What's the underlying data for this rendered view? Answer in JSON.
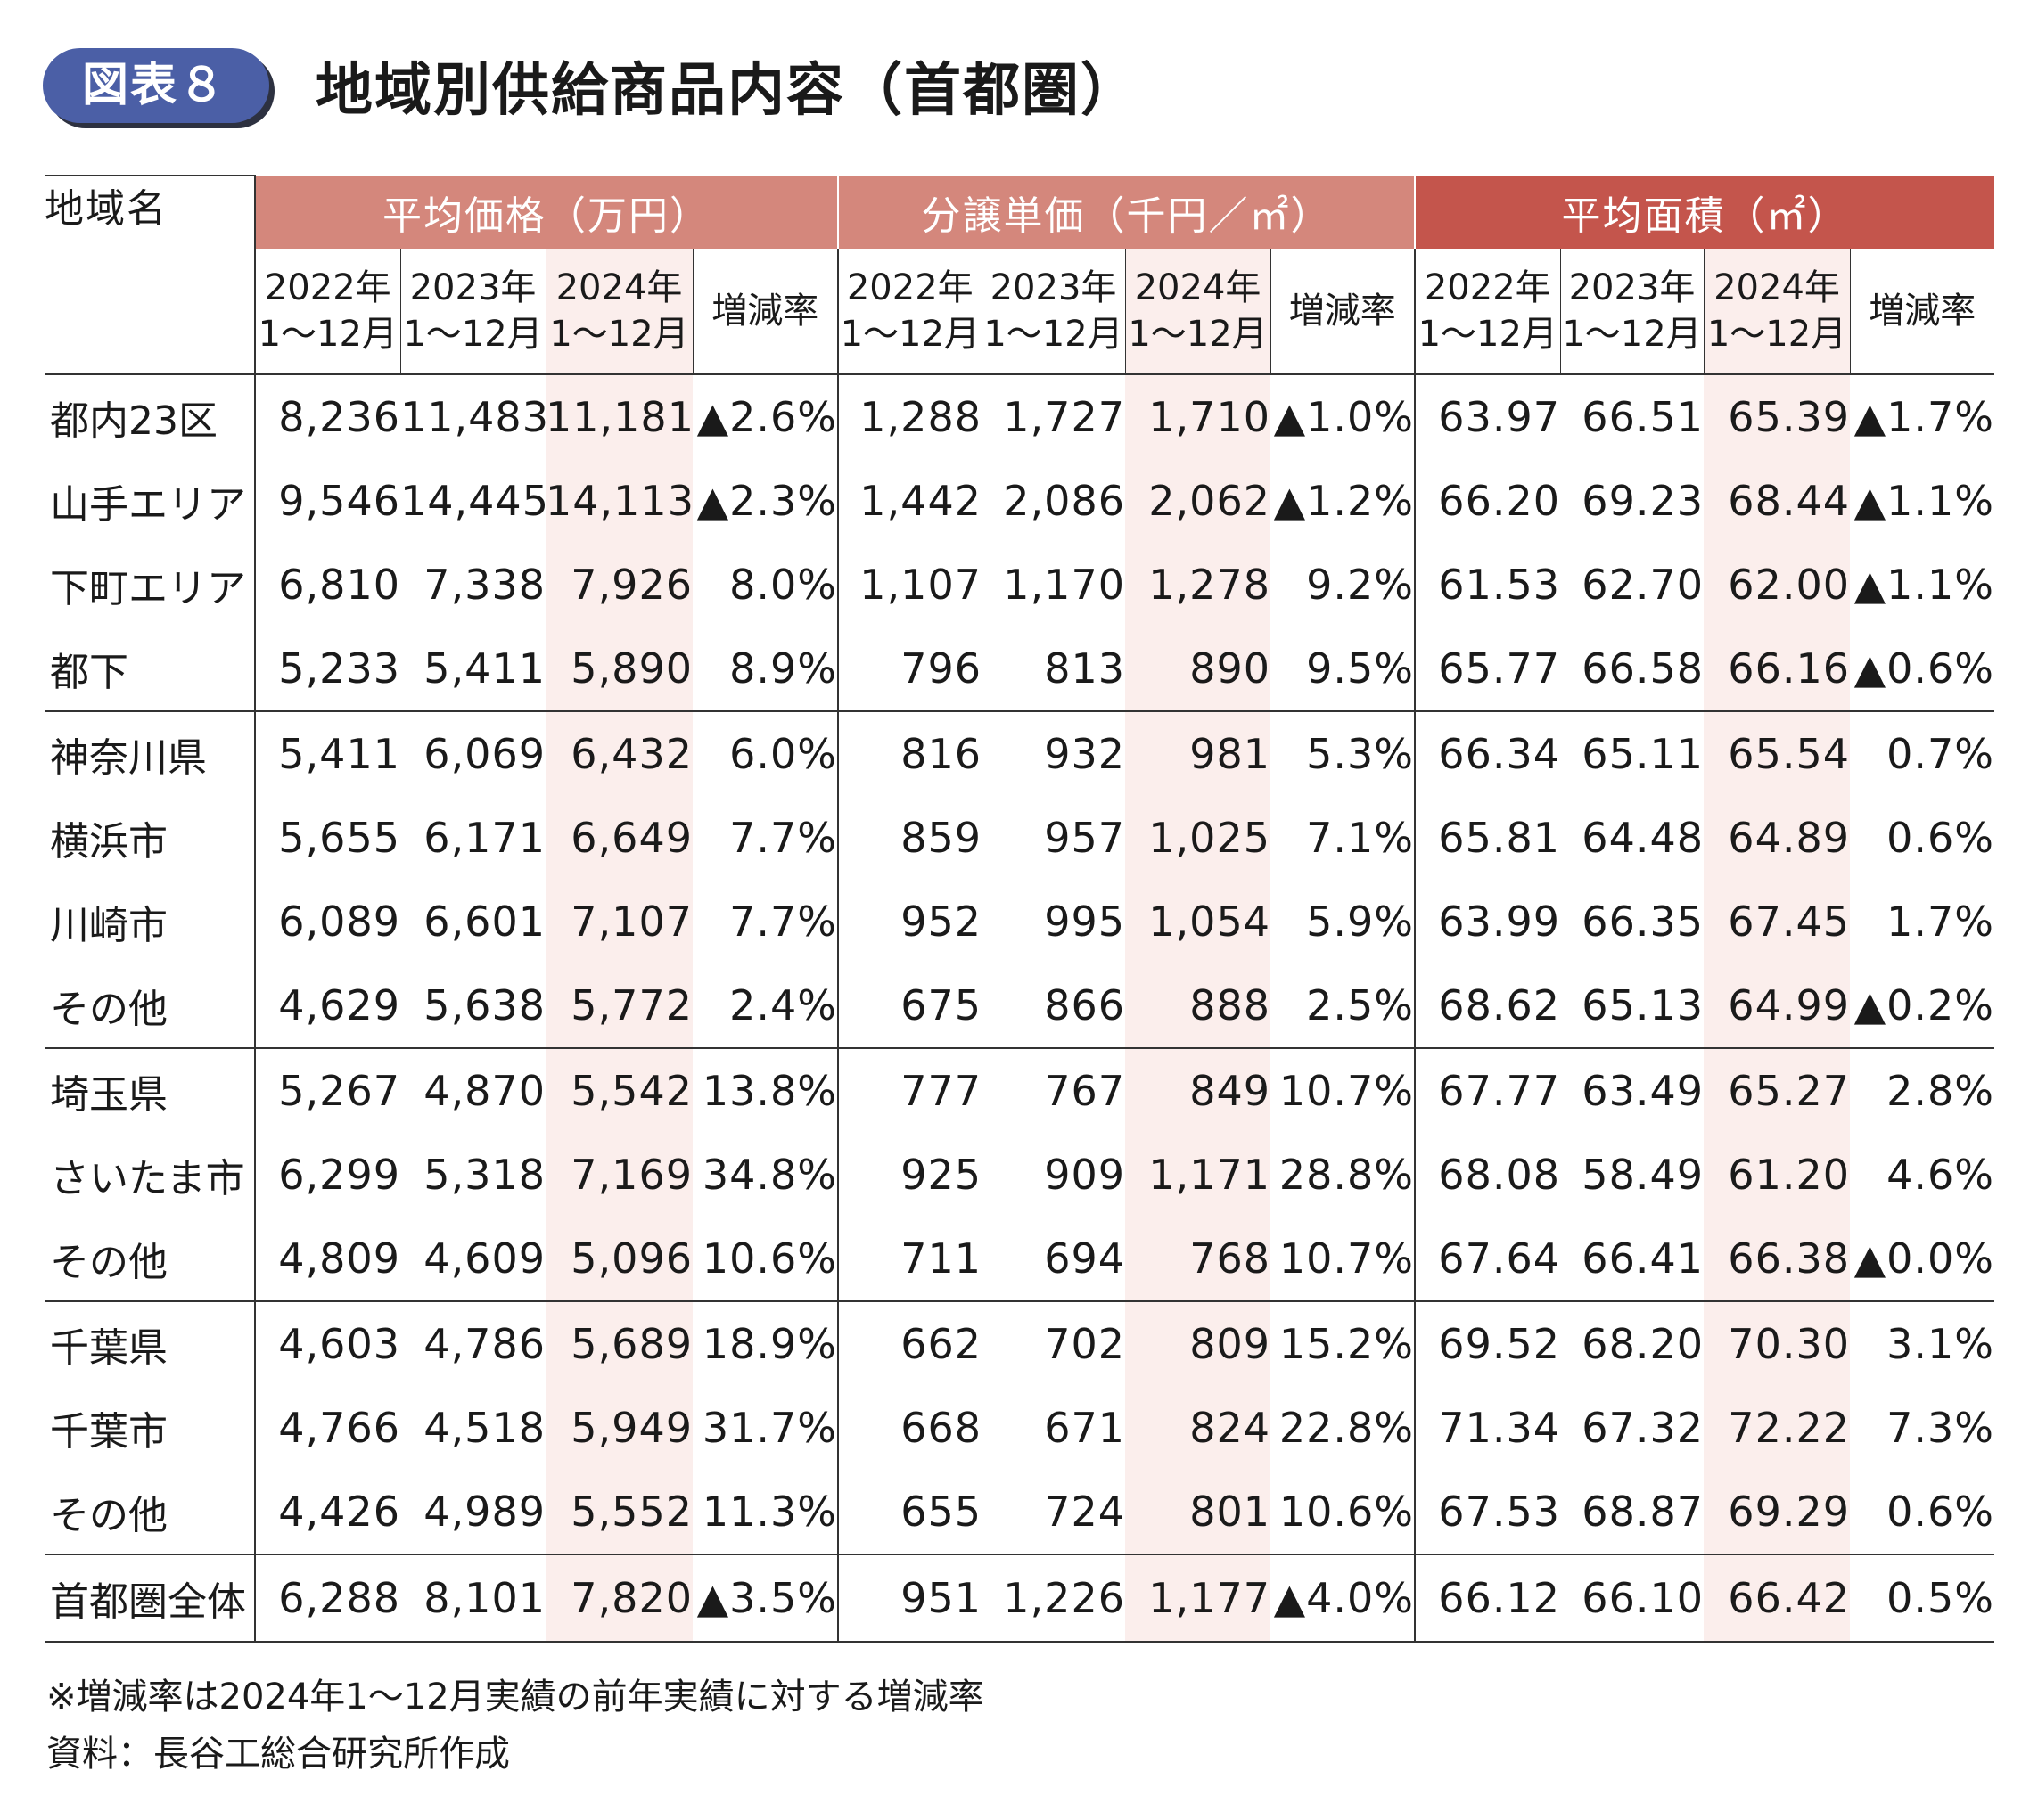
{
  "header": {
    "badge": "図表８",
    "title": "地域別供給商品内容（首都圏）"
  },
  "table": {
    "region_header": "地域名",
    "groups": [
      {
        "label": "平均価格（万円）"
      },
      {
        "label": "分譲単価（千円／㎡）"
      },
      {
        "label": "平均面積（㎡）"
      }
    ],
    "subheaders": [
      {
        "line1": "2022年",
        "line2": "1～12月"
      },
      {
        "line1": "2023年",
        "line2": "1～12月"
      },
      {
        "line1": "2024年",
        "line2": "1～12月"
      },
      {
        "line1": "増減率",
        "line2": ""
      }
    ],
    "rows": [
      {
        "name": "都内23区",
        "values": [
          "8,236",
          "11,483",
          "11,181",
          "▲2.6%",
          "1,288",
          "1,727",
          "1,710",
          "▲1.0%",
          "63.97",
          "66.51",
          "65.39",
          "▲1.7%"
        ]
      },
      {
        "name": "山手エリア",
        "values": [
          "9,546",
          "14,445",
          "14,113",
          "▲2.3%",
          "1,442",
          "2,086",
          "2,062",
          "▲1.2%",
          "66.20",
          "69.23",
          "68.44",
          "▲1.1%"
        ]
      },
      {
        "name": "下町エリア",
        "values": [
          "6,810",
          "7,338",
          "7,926",
          "8.0%",
          "1,107",
          "1,170",
          "1,278",
          "9.2%",
          "61.53",
          "62.70",
          "62.00",
          "▲1.1%"
        ]
      },
      {
        "name": "都下",
        "values": [
          "5,233",
          "5,411",
          "5,890",
          "8.9%",
          "796",
          "813",
          "890",
          "9.5%",
          "65.77",
          "66.58",
          "66.16",
          "▲0.6%"
        ]
      },
      {
        "name": "神奈川県",
        "values": [
          "5,411",
          "6,069",
          "6,432",
          "6.0%",
          "816",
          "932",
          "981",
          "5.3%",
          "66.34",
          "65.11",
          "65.54",
          "0.7%"
        ]
      },
      {
        "name": "横浜市",
        "values": [
          "5,655",
          "6,171",
          "6,649",
          "7.7%",
          "859",
          "957",
          "1,025",
          "7.1%",
          "65.81",
          "64.48",
          "64.89",
          "0.6%"
        ]
      },
      {
        "name": "川崎市",
        "values": [
          "6,089",
          "6,601",
          "7,107",
          "7.7%",
          "952",
          "995",
          "1,054",
          "5.9%",
          "63.99",
          "66.35",
          "67.45",
          "1.7%"
        ]
      },
      {
        "name": "その他",
        "values": [
          "4,629",
          "5,638",
          "5,772",
          "2.4%",
          "675",
          "866",
          "888",
          "2.5%",
          "68.62",
          "65.13",
          "64.99",
          "▲0.2%"
        ]
      },
      {
        "name": "埼玉県",
        "values": [
          "5,267",
          "4,870",
          "5,542",
          "13.8%",
          "777",
          "767",
          "849",
          "10.7%",
          "67.77",
          "63.49",
          "65.27",
          "2.8%"
        ]
      },
      {
        "name": "さいたま市",
        "values": [
          "6,299",
          "5,318",
          "7,169",
          "34.8%",
          "925",
          "909",
          "1,171",
          "28.8%",
          "68.08",
          "58.49",
          "61.20",
          "4.6%"
        ]
      },
      {
        "name": "その他",
        "values": [
          "4,809",
          "4,609",
          "5,096",
          "10.6%",
          "711",
          "694",
          "768",
          "10.7%",
          "67.64",
          "66.41",
          "66.38",
          "▲0.0%"
        ]
      },
      {
        "name": "千葉県",
        "values": [
          "4,603",
          "4,786",
          "5,689",
          "18.9%",
          "662",
          "702",
          "809",
          "15.2%",
          "69.52",
          "68.20",
          "70.30",
          "3.1%"
        ]
      },
      {
        "name": "千葉市",
        "values": [
          "4,766",
          "4,518",
          "5,949",
          "31.7%",
          "668",
          "671",
          "824",
          "22.8%",
          "71.34",
          "67.32",
          "72.22",
          "7.3%"
        ]
      },
      {
        "name": "その他",
        "values": [
          "4,426",
          "4,989",
          "5,552",
          "11.3%",
          "655",
          "724",
          "801",
          "10.6%",
          "67.53",
          "68.87",
          "69.29",
          "0.6%"
        ]
      },
      {
        "name": "首都圏全体",
        "values": [
          "6,288",
          "8,101",
          "7,820",
          "▲3.5%",
          "951",
          "1,226",
          "1,177",
          "▲4.0%",
          "66.12",
          "66.10",
          "66.42",
          "0.5%"
        ]
      }
    ]
  },
  "notes": {
    "line1": "※増減率は2024年1～12月実績の前年実績に対する増減率",
    "line2": "資料：長谷工総合研究所作成"
  }
}
